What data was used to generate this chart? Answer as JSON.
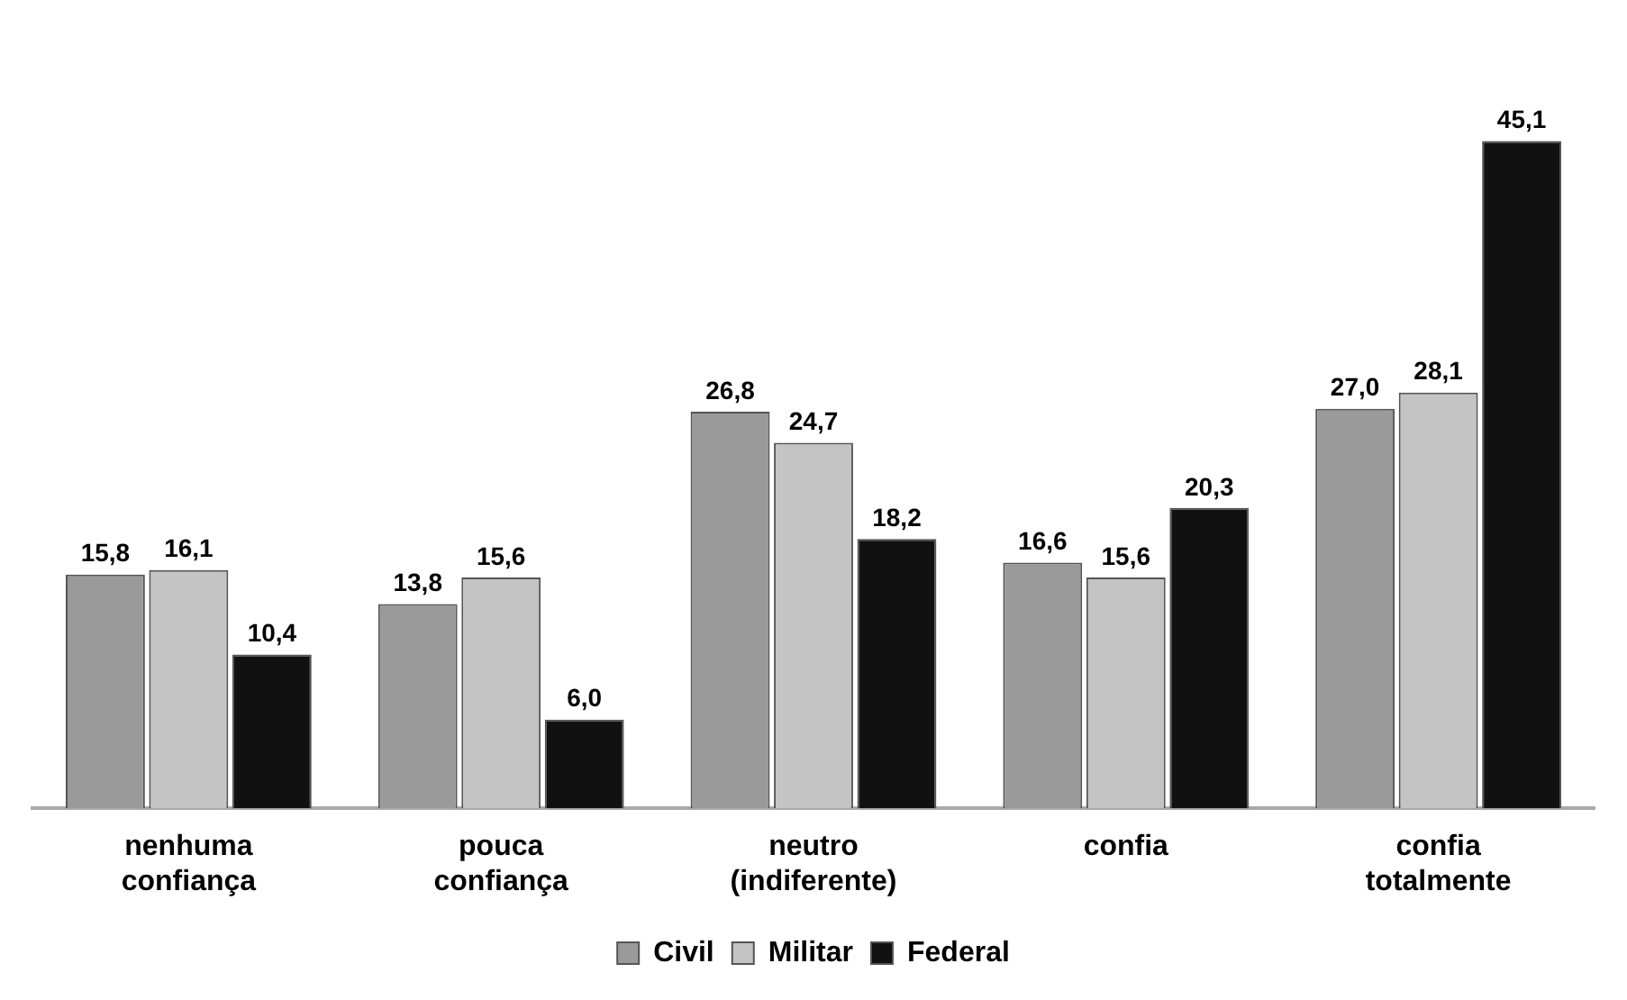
{
  "chart_data": {
    "type": "bar",
    "categories": [
      "nenhuma confiança",
      "pouca confiança",
      "neutro (indiferente)",
      "confia",
      "confia totalmente"
    ],
    "series": [
      {
        "name": "Civil",
        "color": "#9a9a9a",
        "values": [
          15.8,
          13.8,
          26.8,
          16.6,
          27.0
        ],
        "value_labels": [
          "15,8",
          "13,8",
          "26,8",
          "16,6",
          "27,0"
        ]
      },
      {
        "name": "Militar",
        "color": "#c4c4c4",
        "values": [
          16.1,
          15.6,
          24.7,
          15.6,
          28.1
        ],
        "value_labels": [
          "16,1",
          "15,6",
          "24,7",
          "15,6",
          "28,1"
        ]
      },
      {
        "name": "Federal",
        "color": "#111111",
        "values": [
          10.4,
          6.0,
          18.2,
          20.3,
          45.1
        ],
        "value_labels": [
          "10,4",
          "6,0",
          "18,2",
          "20,3",
          "45,1"
        ]
      }
    ],
    "legend": "bottom",
    "grid": false
  }
}
